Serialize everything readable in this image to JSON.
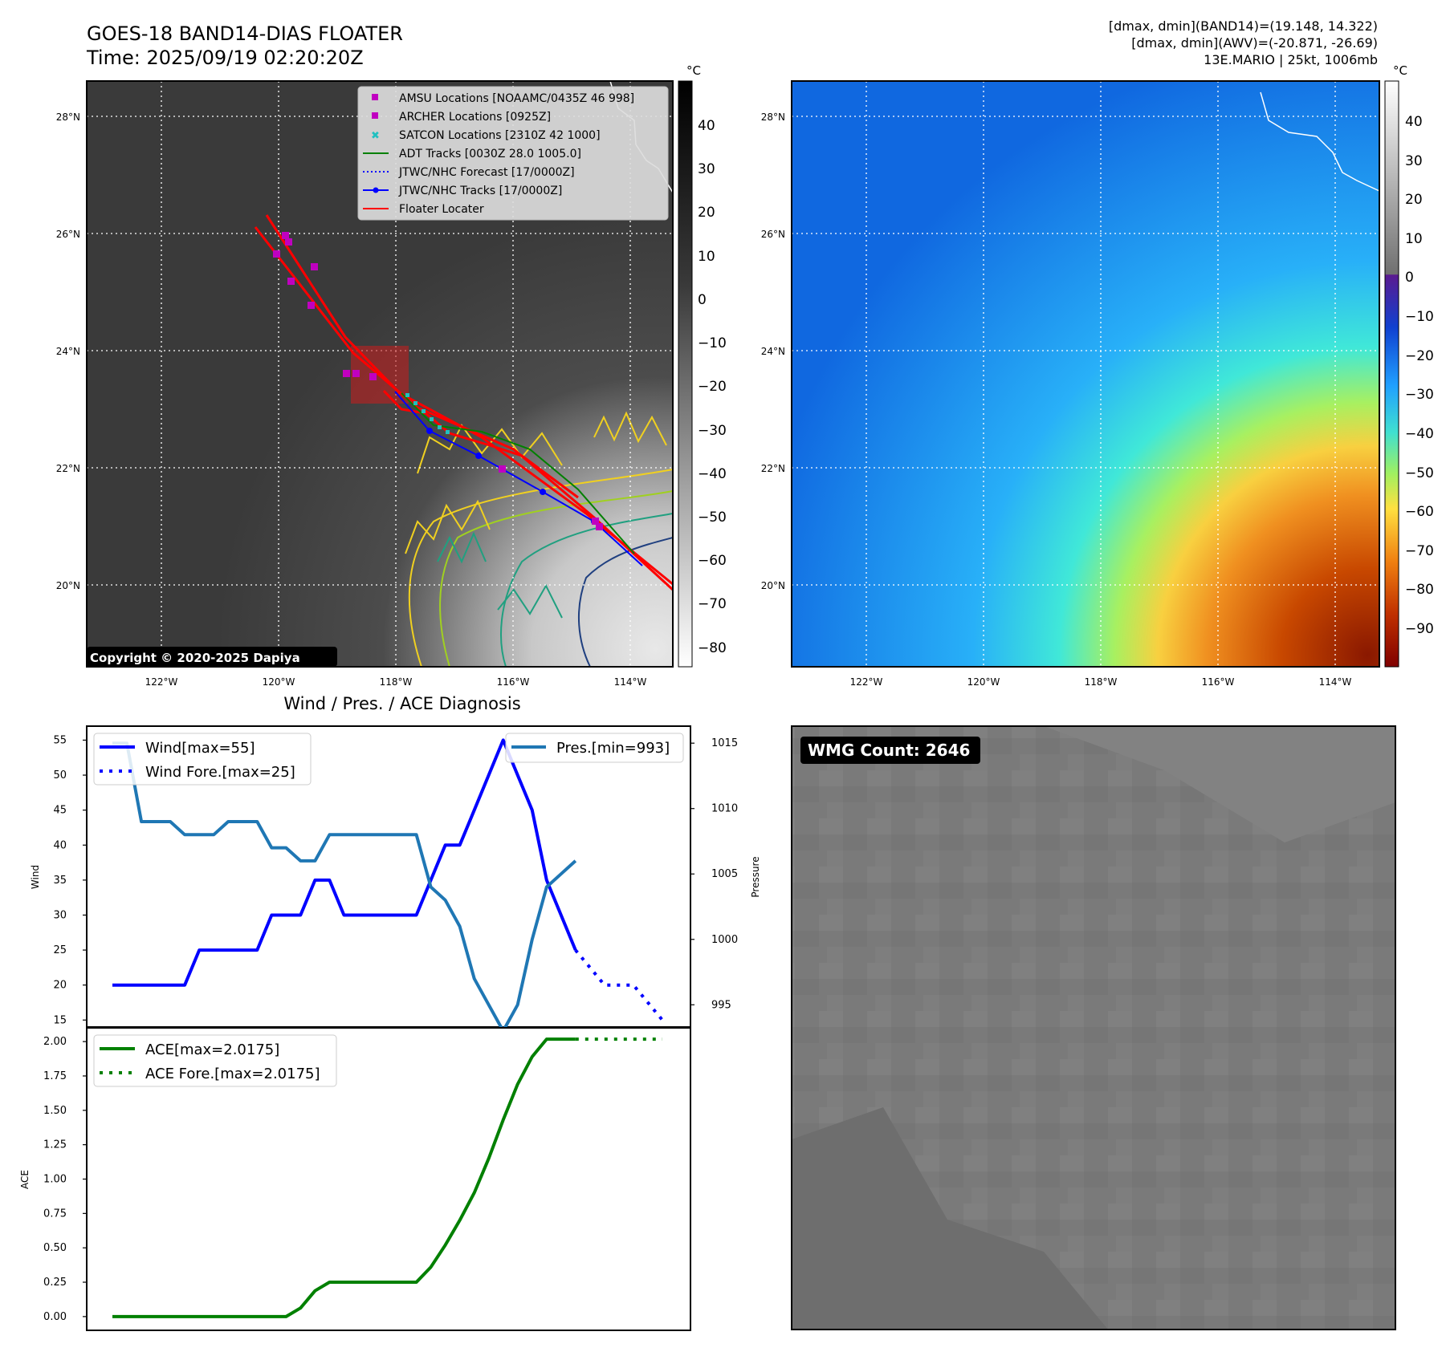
{
  "header": {
    "title_line1": "GOES-18 BAND14-DIAS FLOATER",
    "title_line2": "Time: 2025/09/19 02:20:20Z",
    "info_line1": "[dmax, dmin](BAND14)=(19.148, 14.322)",
    "info_line2": "[dmax, dmin](AWV)=(-20.871, -26.69)",
    "info_line3": "13E.MARIO | 25kt, 1006mb"
  },
  "map_left": {
    "copyright": "Copyright © 2020-2025 Dapiya",
    "colorbar_unit": "°C",
    "colorbar_ticks": [
      "40",
      "30",
      "20",
      "10",
      "0",
      "−10",
      "−20",
      "−30",
      "−40",
      "−50",
      "−60",
      "−70",
      "−80"
    ],
    "lat_labels": [
      "28°N",
      "26°N",
      "24°N",
      "22°N",
      "20°N"
    ],
    "lon_labels": [
      "122°W",
      "120°W",
      "118°W",
      "116°W",
      "114°W"
    ],
    "legend": [
      {
        "label": "AMSU Locations [NOAAMC/0435Z 46 998]",
        "color": "#c000c0",
        "kind": "square"
      },
      {
        "label": "ARCHER Locations [0925Z]",
        "color": "#c000c0",
        "kind": "square"
      },
      {
        "label": "SATCON Locations [2310Z 42 1000]",
        "color": "#20c0c0",
        "kind": "x"
      },
      {
        "label": "ADT Tracks [0030Z 28.0 1005.0]",
        "color": "#008000",
        "kind": "line"
      },
      {
        "label": "JTWC/NHC Forecast [17/0000Z]",
        "color": "#0000ff",
        "kind": "dotted"
      },
      {
        "label": "JTWC/NHC Tracks [17/0000Z]",
        "color": "#0000ff",
        "kind": "line-dot"
      },
      {
        "label": "Floater Locater",
        "color": "#ff0000",
        "kind": "line"
      }
    ]
  },
  "map_right": {
    "colorbar_unit": "°C",
    "colorbar_ticks": [
      "40",
      "30",
      "20",
      "10",
      "0",
      "−10",
      "−20",
      "−30",
      "−40",
      "−50",
      "−60",
      "−70",
      "−80",
      "−90"
    ],
    "lat_labels": [
      "28°N",
      "26°N",
      "24°N",
      "22°N",
      "20°N"
    ],
    "lon_labels": [
      "122°W",
      "120°W",
      "118°W",
      "116°W",
      "114°W"
    ]
  },
  "wmg": {
    "label": "WMG Count: 2646"
  },
  "chart_data": [
    {
      "type": "line",
      "title": "Wind / Pres. / ACE Diagnosis",
      "ylabel": "Wind",
      "ylabel_right": "Pressure",
      "ylim": [
        14,
        57
      ],
      "ylim_right": [
        993.3,
        1016.3
      ],
      "yticks": [
        15,
        20,
        25,
        30,
        35,
        40,
        45,
        50,
        55
      ],
      "yticks_right": [
        995,
        1000,
        1005,
        1010,
        1015
      ],
      "legend_left": [
        "Wind[max=55]",
        "Wind Fore.[max=25]"
      ],
      "legend_right": [
        "Pres.[min=993]"
      ],
      "series": [
        {
          "name": "Wind[max=55]",
          "color": "#0000ff",
          "x": [
            0,
            1,
            2,
            3,
            4,
            5,
            6,
            7,
            8,
            9,
            10,
            11,
            12,
            13,
            14,
            15,
            16,
            17,
            18,
            19,
            20,
            21,
            22,
            23,
            24,
            25,
            26,
            27,
            28,
            29,
            30,
            31,
            32
          ],
          "values": [
            20,
            20,
            20,
            20,
            20,
            20,
            25,
            25,
            25,
            25,
            25,
            30,
            30,
            30,
            35,
            35,
            30,
            30,
            30,
            30,
            30,
            30,
            35,
            40,
            40,
            45,
            50,
            55,
            50,
            45,
            35,
            30,
            25
          ]
        },
        {
          "name": "Wind Fore.[max=25]",
          "color": "#0000ff",
          "style": "dotted",
          "x": [
            32,
            34,
            36,
            38
          ],
          "values": [
            25,
            20,
            20,
            15
          ]
        },
        {
          "name": "Pres.[min=993]",
          "color": "#1f77b4",
          "x": [
            0,
            1,
            2,
            3,
            4,
            5,
            6,
            7,
            8,
            9,
            10,
            11,
            12,
            13,
            14,
            15,
            16,
            17,
            18,
            19,
            20,
            21,
            22,
            23,
            24,
            25,
            26,
            27,
            28,
            29,
            30,
            31,
            32
          ],
          "values": [
            1015,
            1015,
            1009,
            1009,
            1009,
            1008,
            1008,
            1008,
            1009,
            1009,
            1009,
            1007,
            1007,
            1006,
            1006,
            1008,
            1008,
            1008,
            1008,
            1008,
            1008,
            1008,
            1004,
            1003,
            1001,
            997,
            995,
            993,
            995,
            1000,
            1004,
            1005,
            1006
          ]
        }
      ]
    },
    {
      "type": "line",
      "ylabel": "ACE",
      "ylim": [
        -0.1,
        2.1
      ],
      "yticks": [
        "0.00",
        "0.25",
        "0.50",
        "0.75",
        "1.00",
        "1.25",
        "1.50",
        "1.75",
        "2.00"
      ],
      "legend": [
        "ACE[max=2.0175]",
        "ACE Fore.[max=2.0175]"
      ],
      "series": [
        {
          "name": "ACE[max=2.0175]",
          "color": "#008000",
          "x": [
            0,
            1,
            2,
            3,
            4,
            5,
            6,
            7,
            8,
            9,
            10,
            11,
            12,
            13,
            14,
            15,
            16,
            17,
            18,
            19,
            20,
            21,
            22,
            23,
            24,
            25,
            26,
            27,
            28,
            29,
            30,
            31,
            32
          ],
          "values": [
            0,
            0,
            0,
            0,
            0,
            0,
            0,
            0,
            0,
            0,
            0,
            0,
            0,
            0.0625,
            0.1875,
            0.25,
            0.25,
            0.25,
            0.25,
            0.25,
            0.25,
            0.25,
            0.36,
            0.52,
            0.7,
            0.9,
            1.15,
            1.43,
            1.69,
            1.89,
            2.0175,
            2.0175,
            2.0175
          ]
        },
        {
          "name": "ACE Fore.[max=2.0175]",
          "color": "#008000",
          "style": "dotted",
          "x": [
            32,
            34,
            36,
            38
          ],
          "values": [
            2.0175,
            2.0175,
            2.0175,
            2.0175
          ]
        }
      ]
    }
  ]
}
